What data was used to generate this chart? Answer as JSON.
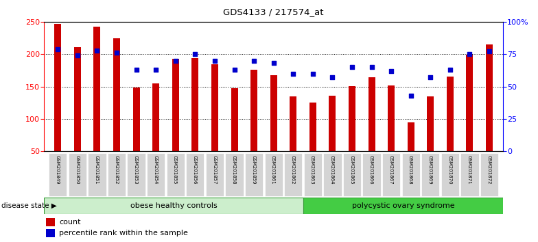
{
  "title": "GDS4133 / 217574_at",
  "samples": [
    "GSM201849",
    "GSM201850",
    "GSM201851",
    "GSM201852",
    "GSM201853",
    "GSM201854",
    "GSM201855",
    "GSM201856",
    "GSM201857",
    "GSM201858",
    "GSM201859",
    "GSM201861",
    "GSM201862",
    "GSM201863",
    "GSM201864",
    "GSM201865",
    "GSM201866",
    "GSM201867",
    "GSM201868",
    "GSM201869",
    "GSM201870",
    "GSM201871",
    "GSM201872"
  ],
  "counts": [
    247,
    211,
    242,
    224,
    148,
    155,
    193,
    194,
    184,
    147,
    176,
    168,
    135,
    125,
    136,
    151,
    164,
    152,
    95,
    135,
    165,
    199,
    215
  ],
  "percentiles": [
    79,
    74,
    78,
    76,
    63,
    63,
    70,
    75,
    70,
    63,
    70,
    68,
    60,
    60,
    57,
    65,
    65,
    62,
    43,
    57,
    63,
    75,
    77
  ],
  "bar_color": "#cc0000",
  "dot_color": "#0000cc",
  "background_color": "#ffffff",
  "group1_label": "obese healthy controls",
  "group2_label": "polycystic ovary syndrome",
  "group1_color": "#cceecc",
  "group2_color": "#44cc44",
  "group1_count": 13,
  "disease_state_label": "disease state",
  "ylim_left": [
    50,
    250
  ],
  "ylim_right": [
    0,
    100
  ],
  "yticks_left": [
    50,
    100,
    150,
    200,
    250
  ],
  "yticks_right": [
    0,
    25,
    50,
    75,
    100
  ],
  "ytick_labels_right": [
    "0",
    "25",
    "50",
    "75",
    "100%"
  ],
  "legend_count_label": "count",
  "legend_pct_label": "percentile rank within the sample",
  "bar_width": 0.35
}
